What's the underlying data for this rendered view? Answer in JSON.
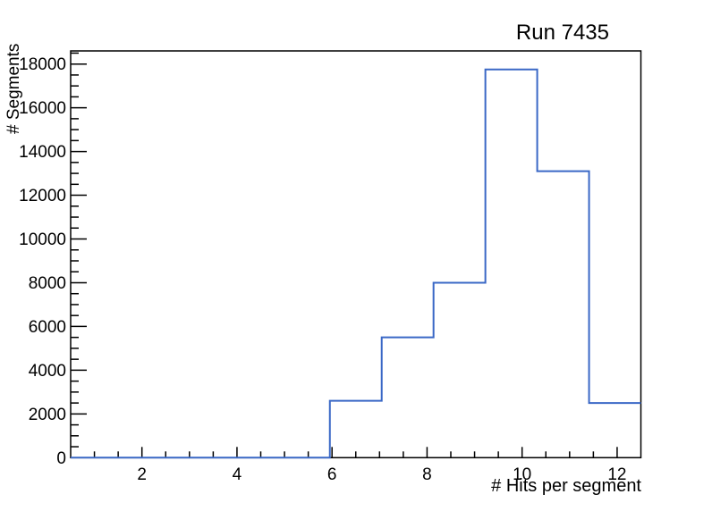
{
  "page": {
    "background": "#ffffff"
  },
  "chart_data": {
    "type": "bar",
    "subtype": "step-histogram",
    "title": "Run 7435",
    "xlabel": "# Hits per segment",
    "ylabel": "# Segments",
    "xlim": [
      0.5,
      12.5
    ],
    "ylim": [
      0,
      18600
    ],
    "grid": false,
    "legend": false,
    "line_color": "#3a68c6",
    "frame_color": "#000000",
    "bin_edges": [
      0.5,
      1.5909,
      2.6818,
      3.7727,
      4.8636,
      5.9545,
      7.0455,
      8.1364,
      9.2273,
      10.3182,
      11.4091,
      12.5
    ],
    "values": [
      0,
      0,
      0,
      0,
      0,
      2600,
      5500,
      8000,
      17750,
      13100,
      2500
    ],
    "x_axis": {
      "major_ticks": [
        2,
        4,
        6,
        8,
        10,
        12
      ],
      "minor_tick_start": 1.0,
      "minor_tick_end": 12.0,
      "minor_tick_step": 0.5
    },
    "y_axis": {
      "major_ticks": [
        0,
        2000,
        4000,
        6000,
        8000,
        10000,
        12000,
        14000,
        16000,
        18000
      ],
      "minor_tick_start": 500,
      "minor_tick_end": 18500,
      "minor_tick_step": 500
    }
  }
}
